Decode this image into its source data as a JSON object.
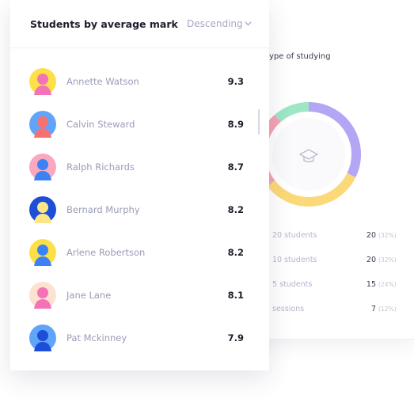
{
  "list_card": {
    "title": "Students by average mark",
    "sort": "Descending",
    "students": [
      {
        "name": "Annette Watson",
        "mark": 9.3
      },
      {
        "name": "Calvin Steward",
        "mark": 8.9
      },
      {
        "name": "Ralph Richards",
        "mark": 8.7
      },
      {
        "name": "Bernard Murphy",
        "mark": 8.2
      },
      {
        "name": "Arlene Robertson",
        "mark": 8.2
      },
      {
        "name": "Jane Lane",
        "mark": 8.1
      },
      {
        "name": "Pat Mckinney",
        "mark": 7.9
      }
    ]
  },
  "back_card": {
    "title": "ype of studying",
    "rows": [
      {
        "label": "20 students",
        "count": 20,
        "share": "(32%)",
        "color": "#b4a5f5"
      },
      {
        "label": "10 students",
        "count": 20,
        "share": "(32%)",
        "color": "#fcd978"
      },
      {
        "label": "5 students",
        "count": 15,
        "share": "(24%)",
        "color": "#f5a3b4"
      },
      {
        "label": "sessions",
        "count": 7,
        "share": "(12%)",
        "color": "#9ee6c5"
      }
    ]
  }
}
